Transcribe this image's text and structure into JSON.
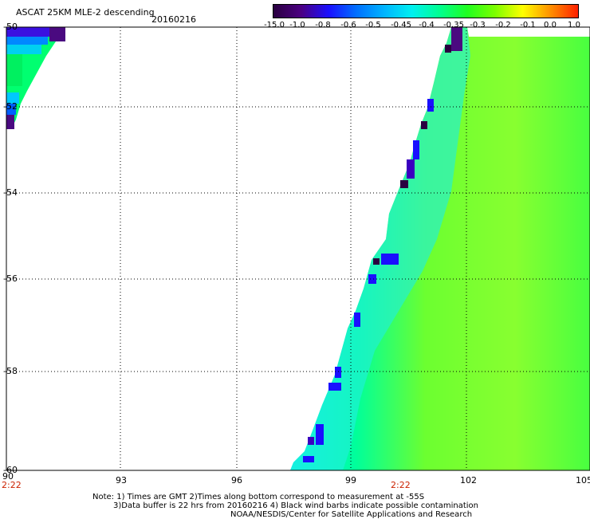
{
  "header": {
    "title": "ASCAT 25KM MLE-2 descending",
    "date": "20160216"
  },
  "colorbar": {
    "tick_labels": [
      "-15.0",
      "-1.0",
      "-0.8",
      "-0.6",
      "-0.5",
      "-0.45",
      "-0.4",
      "-0.35",
      "-0.3",
      "-0.2",
      "-0.1",
      "0.0",
      "1.0"
    ],
    "colors": [
      "#2a0040",
      "#4b0082",
      "#1a10ff",
      "#0070ff",
      "#00b4ff",
      "#00f0f0",
      "#00ff90",
      "#20ff20",
      "#7cff00",
      "#ffff00",
      "#ff9000",
      "#ff2000"
    ]
  },
  "map": {
    "lat_labels": [
      "-50",
      "-52",
      "-54",
      "-56",
      "-58",
      "-60"
    ],
    "lon_labels": [
      "90",
      "93",
      "96",
      "99",
      "102",
      "105"
    ],
    "time_labels": [
      "2:22",
      "2:22"
    ]
  },
  "notes": {
    "line1": "Note: 1) Times are GMT 2)Times along bottom correspond to measurement at -55S",
    "line2": "3)Data buffer is 22 hrs from 20160216 4) Black wind barbs indicate possible contamination",
    "line3": "NOAA/NESDIS/Center for Satellite Applications and Research"
  }
}
